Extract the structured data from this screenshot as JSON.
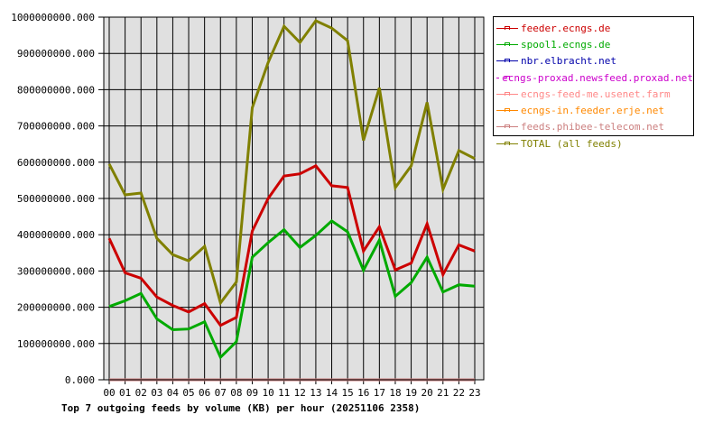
{
  "chart_data": {
    "type": "line",
    "title": "Top 7 outgoing feeds by volume (KB) per hour (20251106 2358)",
    "xlabel": "",
    "ylabel": "",
    "ylim": [
      0,
      1000000000
    ],
    "grid": true,
    "legend_position": "right",
    "y_ticks": [
      "0.000",
      "100000000.000",
      "200000000.000",
      "300000000.000",
      "400000000.000",
      "500000000.000",
      "600000000.000",
      "700000000.000",
      "800000000.000",
      "900000000.000",
      "1000000000.000"
    ],
    "categories": [
      "00",
      "01",
      "02",
      "03",
      "04",
      "05",
      "06",
      "07",
      "08",
      "09",
      "10",
      "11",
      "12",
      "13",
      "14",
      "15",
      "16",
      "17",
      "18",
      "19",
      "20",
      "21",
      "22",
      "23"
    ],
    "series": [
      {
        "name": "feeder.ecngs.de",
        "color": "#cc0000",
        "values": [
          390000000,
          295000000,
          280000000,
          228000000,
          205000000,
          187000000,
          210000000,
          150000000,
          172000000,
          410000000,
          500000000,
          562000000,
          568000000,
          590000000,
          535000000,
          530000000,
          355000000,
          422000000,
          303000000,
          322000000,
          430000000,
          290000000,
          372000000,
          355000000
        ]
      },
      {
        "name": "spool1.ecngs.de",
        "color": "#00aa00",
        "values": [
          202000000,
          218000000,
          238000000,
          168000000,
          138000000,
          140000000,
          160000000,
          62000000,
          105000000,
          338000000,
          378000000,
          414000000,
          365000000,
          398000000,
          438000000,
          408000000,
          302000000,
          385000000,
          230000000,
          268000000,
          338000000,
          242000000,
          262000000,
          258000000
        ]
      },
      {
        "name": "nbr.elbracht.net",
        "color": "#0000aa",
        "values": [
          0,
          0,
          0,
          0,
          0,
          0,
          0,
          0,
          0,
          0,
          0,
          0,
          0,
          0,
          0,
          0,
          0,
          0,
          0,
          0,
          0,
          0,
          0,
          0
        ]
      },
      {
        "name": "ecngs-proxad.newsfeed.proxad.net",
        "color": "#cc00cc",
        "values": [
          0,
          0,
          0,
          0,
          0,
          0,
          0,
          0,
          0,
          0,
          0,
          0,
          0,
          0,
          0,
          0,
          0,
          0,
          0,
          0,
          0,
          0,
          0,
          0
        ]
      },
      {
        "name": "ecngs-feed-me.usenet.farm",
        "color": "#ff8888",
        "values": [
          0,
          0,
          0,
          0,
          0,
          0,
          0,
          0,
          0,
          0,
          0,
          0,
          0,
          0,
          0,
          0,
          0,
          0,
          0,
          0,
          0,
          0,
          0,
          0
        ]
      },
      {
        "name": "ecngs-in.feeder.erje.net",
        "color": "#ff8800",
        "values": [
          0,
          0,
          0,
          0,
          0,
          0,
          0,
          0,
          0,
          0,
          0,
          0,
          0,
          0,
          0,
          0,
          0,
          0,
          0,
          0,
          0,
          0,
          0,
          0
        ]
      },
      {
        "name": "feeds.phibee-telecom.net",
        "color": "#cc8080",
        "values": [
          0,
          0,
          0,
          0,
          0,
          0,
          0,
          0,
          0,
          0,
          0,
          0,
          0,
          0,
          0,
          0,
          0,
          0,
          0,
          0,
          0,
          0,
          0,
          0
        ]
      },
      {
        "name": "TOTAL (all feeds)",
        "color": "#808000",
        "values": [
          595000000,
          510000000,
          515000000,
          390000000,
          345000000,
          328000000,
          368000000,
          212000000,
          270000000,
          750000000,
          875000000,
          975000000,
          930000000,
          990000000,
          970000000,
          935000000,
          660000000,
          805000000,
          530000000,
          590000000,
          765000000,
          525000000,
          632000000,
          610000000
        ]
      }
    ]
  },
  "legend": {
    "items": [
      {
        "label": "feeder.ecngs.de",
        "color": "#cc0000"
      },
      {
        "label": "spool1.ecngs.de",
        "color": "#00aa00"
      },
      {
        "label": "nbr.elbracht.net",
        "color": "#0000aa"
      },
      {
        "label": "ecngs-proxad.newsfeed.proxad.net",
        "color": "#cc00cc"
      },
      {
        "label": "ecngs-feed-me.usenet.farm",
        "color": "#ff8888"
      },
      {
        "label": "ecngs-in.feeder.erje.net",
        "color": "#ff8800"
      },
      {
        "label": "feeds.phibee-telecom.net",
        "color": "#cc8080"
      },
      {
        "label": "TOTAL (all feeds)",
        "color": "#808000"
      }
    ]
  },
  "plot": {
    "background": "#e0e0e0",
    "grid_color": "#000000"
  }
}
